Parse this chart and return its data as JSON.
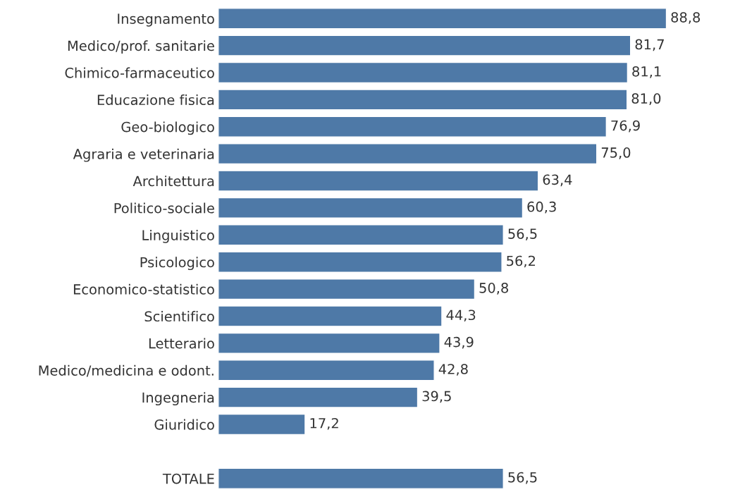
{
  "chart_data": {
    "type": "bar",
    "orientation": "horizontal",
    "color": "#4e79a7",
    "tick_labels": "y",
    "grid": false,
    "legend": false,
    "categories": [
      "Insegnamento",
      "Medico/prof. sanitarie",
      "Chimico-farmaceutico",
      "Educazione fisica",
      "Geo-biologico",
      "Agraria e veterinaria",
      "Architettura",
      "Politico-sociale",
      "Linguistico",
      "Psicologico",
      "Economico-statistico",
      "Scientifico",
      "Letterario",
      "Medico/medicina e odont.",
      "Ingegneria",
      "Giuridico",
      null,
      "TOTALE"
    ],
    "values": [
      88.8,
      81.7,
      81.1,
      81.0,
      76.9,
      75.0,
      63.4,
      60.3,
      56.5,
      56.2,
      50.8,
      44.3,
      43.9,
      42.8,
      39.5,
      17.2,
      null,
      56.5
    ],
    "value_labels": [
      "88,8",
      "81,7",
      "81,1",
      "81,0",
      "76,9",
      "75,0",
      "63,4",
      "60,3",
      "56,5",
      "56,2",
      "50,8",
      "44,3",
      "43,9",
      "42,8",
      "39,5",
      "17,2",
      null,
      "56,5"
    ]
  }
}
